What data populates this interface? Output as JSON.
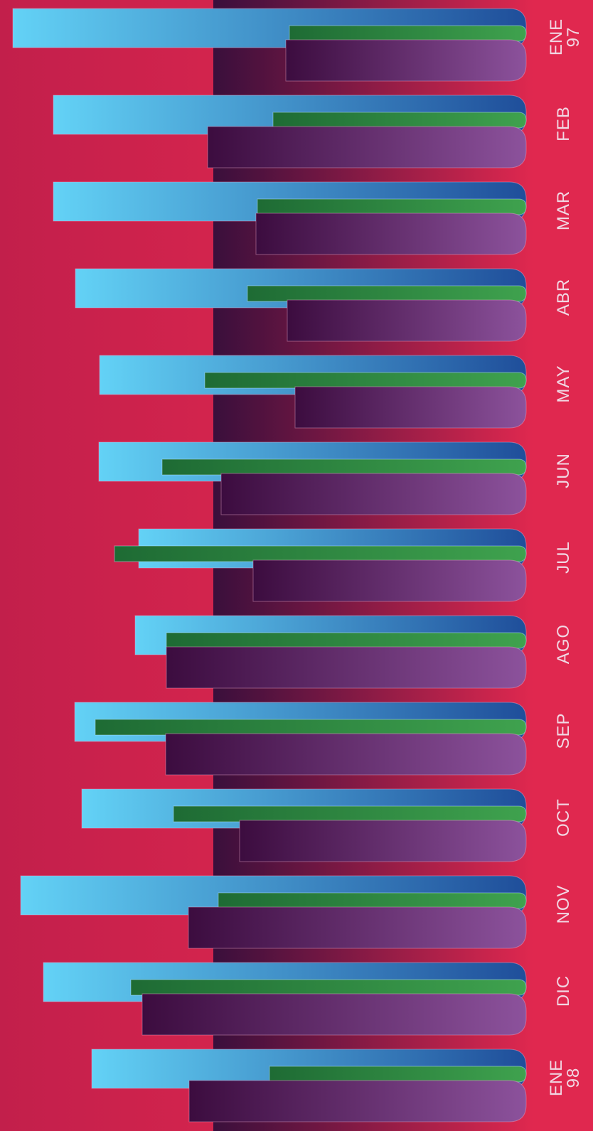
{
  "chart_data": {
    "type": "bar",
    "orientation": "horizontal",
    "categories": [
      "ENE 97",
      "FEB",
      "MAR",
      "ABR",
      "MAY",
      "JUN",
      "JUL",
      "AGO",
      "SEP",
      "OCT",
      "NOV",
      "DIC",
      "ENE 98"
    ],
    "category_labels": [
      {
        "line1": "ENE",
        "line2": "97"
      },
      {
        "line1": "FEB",
        "line2": ""
      },
      {
        "line1": "MAR",
        "line2": ""
      },
      {
        "line1": "ABR",
        "line2": ""
      },
      {
        "line1": "MAY",
        "line2": ""
      },
      {
        "line1": "JUN",
        "line2": ""
      },
      {
        "line1": "JUL",
        "line2": ""
      },
      {
        "line1": "AGO",
        "line2": ""
      },
      {
        "line1": "SEP",
        "line2": ""
      },
      {
        "line1": "OCT",
        "line2": ""
      },
      {
        "line1": "NOV",
        "line2": ""
      },
      {
        "line1": "DIC",
        "line2": ""
      },
      {
        "line1": "ENE",
        "line2": "98"
      }
    ],
    "series": [
      {
        "values": [
          72.2,
          66.5,
          66.5,
          63.4,
          60.0,
          60.1,
          54.5,
          55.0,
          63.5,
          62.5,
          71.1,
          67.9,
          61.1
        ]
      },
      {
        "values": [
          33.3,
          35.6,
          37.8,
          39.2,
          45.2,
          51.2,
          57.9,
          50.6,
          60.6,
          49.6,
          43.3,
          55.6,
          36.1
        ]
      },
      {
        "values": [
          33.8,
          44.8,
          38.0,
          33.6,
          32.5,
          42.9,
          38.4,
          50.6,
          50.7,
          40.3,
          47.5,
          54.0,
          47.4
        ]
      }
    ],
    "xlim": [
      0,
      72.2
    ],
    "title": "",
    "xlabel": "",
    "ylabel": "",
    "grid": false,
    "legend": "none",
    "colors": {
      "background": "#e0284f",
      "background_dark": "#c21f4b",
      "band": "#3a0f3c",
      "series1_light": "#63d2f6",
      "series1_dark": "#1f4e9a",
      "series2_dark": "#1e6b34",
      "series2_light": "#3fa24e",
      "series3_dark": "#3c0c3f",
      "series3_light": "#8c529c",
      "label": "#f1d7e3"
    }
  }
}
